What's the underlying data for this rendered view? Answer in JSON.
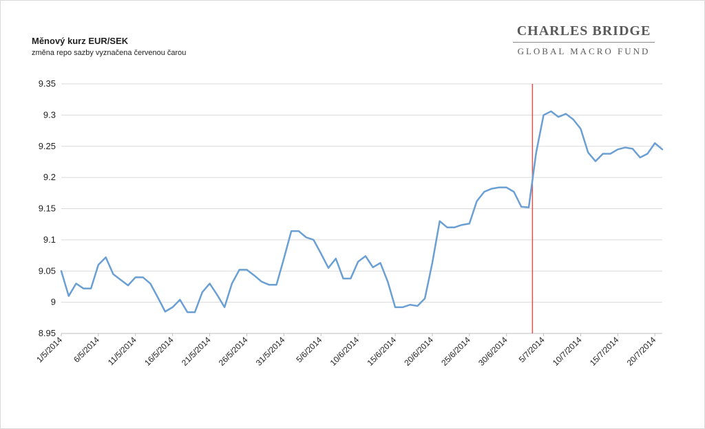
{
  "chart_data": {
    "type": "line",
    "title": "Měnový kurz EUR/SEK",
    "subtitle": "změna repo sazby vyznačena červenou čarou",
    "ylim": [
      8.95,
      9.35
    ],
    "yticks": [
      "8.95",
      "9",
      "9.05",
      "9.1",
      "9.15",
      "9.2",
      "9.25",
      "9.3",
      "9.35"
    ],
    "xtick_labels": [
      "1/5/2014",
      "6/5/2014",
      "11/5/2014",
      "16/5/2014",
      "21/5/2014",
      "26/5/2014",
      "31/5/2014",
      "5/6/2014",
      "10/6/2014",
      "15/6/2014",
      "20/6/2014",
      "25/6/2014",
      "30/6/2014",
      "5/7/2014",
      "10/7/2014",
      "15/7/2014",
      "20/7/2014"
    ],
    "series": [
      {
        "values": [
          9.05,
          9.01,
          9.03,
          9.022,
          9.022,
          9.06,
          9.072,
          9.045,
          9.036,
          9.027,
          9.04,
          9.04,
          9.03,
          9.008,
          8.985,
          8.992,
          9.004,
          8.984,
          8.984,
          9.016,
          9.03,
          9.012,
          8.992,
          9.03,
          9.052,
          9.052,
          9.043,
          9.033,
          9.028,
          9.028,
          9.07,
          9.114,
          9.114,
          9.104,
          9.1,
          9.078,
          9.055,
          9.07,
          9.038,
          9.038,
          9.065,
          9.074,
          9.056,
          9.063,
          9.033,
          8.992,
          8.992,
          8.996,
          8.994,
          9.006,
          9.063,
          9.13,
          9.12,
          9.12,
          9.124,
          9.126,
          9.162,
          9.177,
          9.182,
          9.184,
          9.184,
          9.177,
          9.153,
          9.152,
          9.24,
          9.3,
          9.306,
          9.297,
          9.302,
          9.293,
          9.278,
          9.24,
          9.226,
          9.238,
          9.238,
          9.245,
          9.248,
          9.246,
          9.232,
          9.238,
          9.255,
          9.245
        ]
      }
    ],
    "marker_index": 63.5,
    "colors": {
      "line": "#6a9fd4",
      "marker": "#d9534f",
      "grid": "#d9d9d9",
      "axis": "#bfbfbf"
    }
  },
  "logo": {
    "main": "CHARLES BRIDGE",
    "sub": "GLOBAL MACRO FUND"
  }
}
